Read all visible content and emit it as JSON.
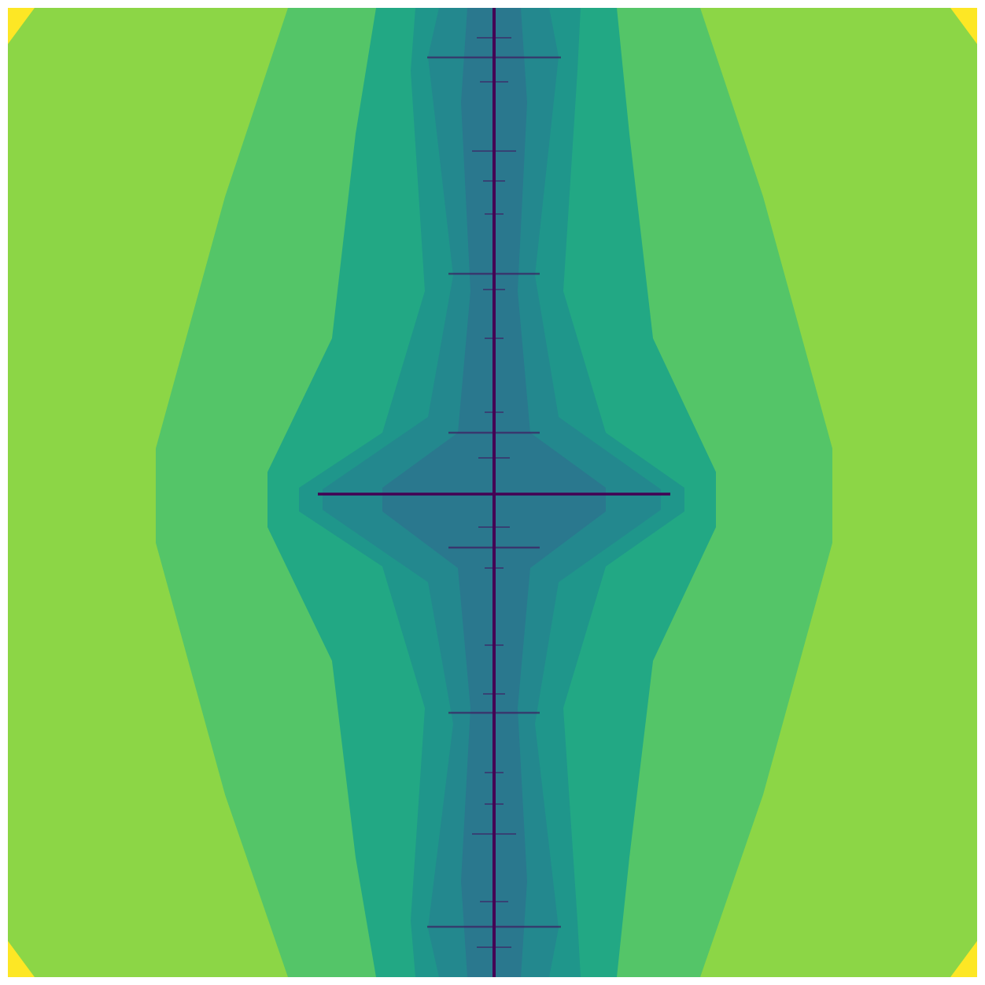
{
  "palette": {
    "outer": "#8cd646",
    "band1": "#54c568",
    "band2": "#22a884",
    "band3": "#1f968b",
    "band4": "#23888e",
    "band5": "#2a788e",
    "core": "#440154",
    "corner": "#fde725",
    "background": "#ffffff"
  }
}
